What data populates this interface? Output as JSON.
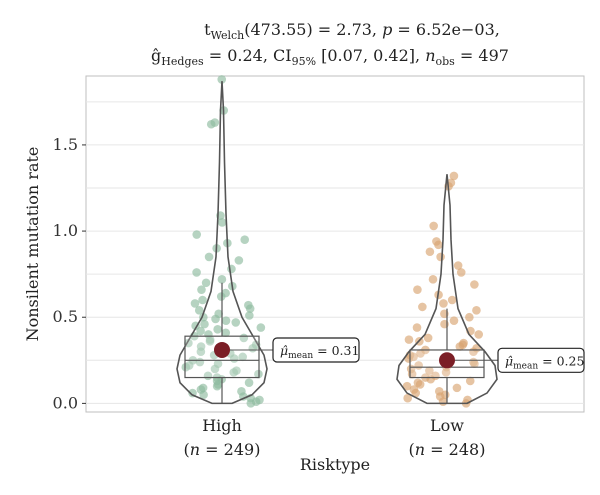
{
  "chart_data": {
    "type": "violin",
    "subtitle_line1": {
      "stat_name": "t",
      "stat_sub": "Welch",
      "df": "(473.55) = 2.73, ",
      "p_sym": "p",
      "p_val": " = 6.52e−03,"
    },
    "subtitle_line2": {
      "effect_name": "ĝ",
      "effect_sub": "Hedges",
      "effect_val": " = 0.24, ",
      "ci_name": "CI",
      "ci_sub": "95%",
      "ci_val": " [0.07, 0.42], ",
      "n_sym": "n",
      "n_sub": "obs",
      "n_val": " = 497"
    },
    "xlabel": "Risktype",
    "ylabel": "Nonsilent mutation rate",
    "ylim": [
      -0.05,
      1.9
    ],
    "yticks": [
      0.0,
      0.5,
      1.0,
      1.5
    ],
    "ytick_labels": [
      "0.0",
      "0.5",
      "1.0",
      "1.5"
    ],
    "grid": true,
    "groups": [
      {
        "name": "High",
        "n_label": "(n = 249)",
        "n_sym": "n",
        "n_val": " = 249",
        "color": "#8fbc9f",
        "mean": 0.31,
        "mean_label_sym": "μ̂",
        "mean_label_sub": "mean",
        "mean_label_val": " = 0.31",
        "box": {
          "q1": 0.15,
          "median": 0.25,
          "q3": 0.39,
          "whisker_low": 0.0,
          "whisker_high": 0.7
        },
        "violin_max": 1.87,
        "points": [
          1.88,
          1.7,
          1.62,
          1.63,
          1.09,
          1.05,
          0.98,
          0.95,
          0.93,
          0.9,
          0.85,
          0.83,
          0.78,
          0.76,
          0.72,
          0.7,
          0.68,
          0.66,
          0.64,
          0.62,
          0.6,
          0.58,
          0.57,
          0.55,
          0.54,
          0.52,
          0.51,
          0.5,
          0.49,
          0.48,
          0.47,
          0.46,
          0.45,
          0.44,
          0.43,
          0.42,
          0.41,
          0.4,
          0.39,
          0.38,
          0.37,
          0.36,
          0.35,
          0.34,
          0.33,
          0.32,
          0.31,
          0.3,
          0.29,
          0.28,
          0.27,
          0.26,
          0.25,
          0.24,
          0.23,
          0.22,
          0.21,
          0.2,
          0.19,
          0.18,
          0.17,
          0.16,
          0.15,
          0.14,
          0.13,
          0.12,
          0.11,
          0.1,
          0.09,
          0.08,
          0.07,
          0.06,
          0.05,
          0.04,
          0.03,
          0.02,
          0.01,
          0.0
        ]
      },
      {
        "name": "Low",
        "n_label": "(n = 248)",
        "n_sym": "n",
        "n_val": " = 248",
        "color": "#d9a472",
        "mean": 0.25,
        "mean_label_sym": "μ̂",
        "mean_label_sub": "mean",
        "mean_label_val": " = 0.25",
        "box": {
          "q1": 0.15,
          "median": 0.21,
          "q3": 0.31,
          "whisker_low": 0.0,
          "whisker_high": 0.55
        },
        "violin_max": 1.33,
        "points": [
          1.32,
          1.28,
          1.26,
          1.03,
          0.94,
          0.92,
          0.88,
          0.85,
          0.8,
          0.76,
          0.72,
          0.69,
          0.66,
          0.63,
          0.6,
          0.58,
          0.56,
          0.54,
          0.52,
          0.5,
          0.48,
          0.46,
          0.44,
          0.42,
          0.4,
          0.38,
          0.37,
          0.36,
          0.35,
          0.34,
          0.33,
          0.32,
          0.31,
          0.3,
          0.29,
          0.28,
          0.27,
          0.26,
          0.25,
          0.24,
          0.23,
          0.22,
          0.21,
          0.2,
          0.19,
          0.18,
          0.17,
          0.16,
          0.15,
          0.14,
          0.13,
          0.12,
          0.11,
          0.1,
          0.09,
          0.08,
          0.07,
          0.06,
          0.05,
          0.04,
          0.03,
          0.02,
          0.01,
          0.0
        ]
      }
    ],
    "colors": {
      "mean_point": "#7b1e26",
      "grid": "#e6e6e6",
      "violin_stroke": "#555555",
      "panel_border": "#bfbfbf"
    }
  }
}
